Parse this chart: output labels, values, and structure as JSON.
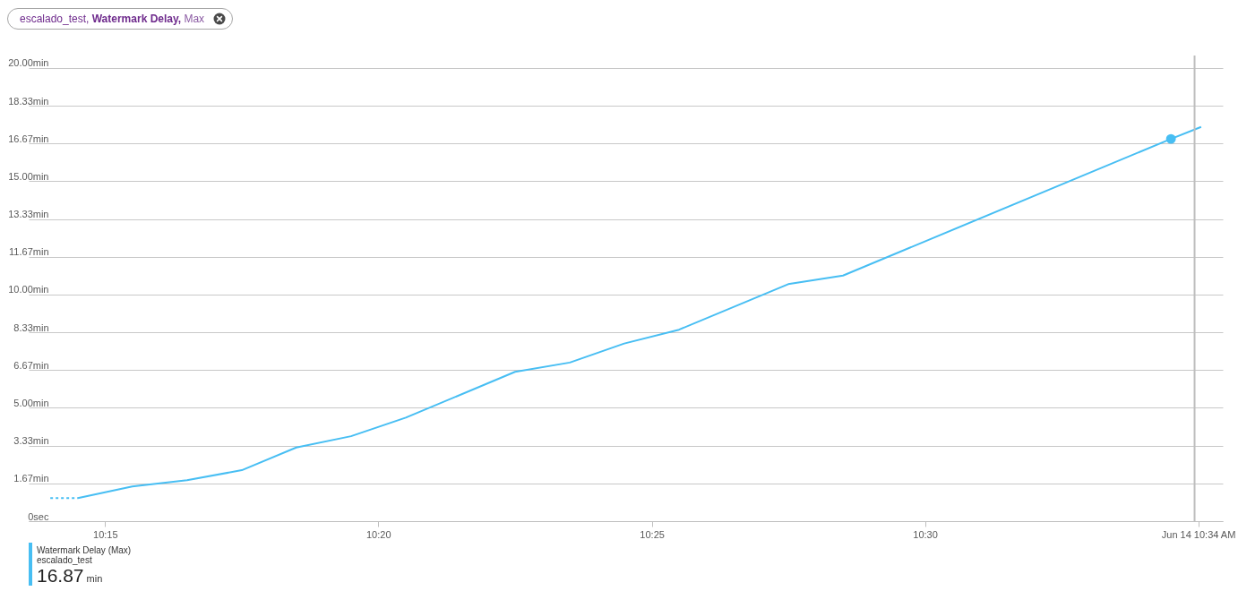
{
  "chart_data": {
    "type": "line",
    "title": "escalado_test, Watermark Delay, Max",
    "series": [
      {
        "color": "#47bef3",
        "line_style": "dotted",
        "x": [
          10.2333,
          10.2417
        ],
        "values": [
          1.02,
          1.02
        ]
      },
      {
        "name": "Watermark Delay (Max)",
        "color": "#47bef3",
        "x": [
          10.2417,
          10.2583,
          10.275,
          10.2917,
          10.3083,
          10.325,
          10.3417,
          10.375,
          10.3917,
          10.4083,
          10.425,
          10.4583,
          10.475,
          10.575,
          10.5842
        ],
        "values": [
          1.02,
          1.53,
          1.81,
          2.25,
          3.25,
          3.75,
          4.57,
          6.59,
          7.0,
          7.84,
          8.45,
          10.46,
          10.84,
          16.87,
          17.4
        ]
      },
      {
        "type": "scatter",
        "marker": "circle",
        "color": "#47bef3",
        "x": [
          10.575
        ],
        "values": [
          16.87
        ]
      }
    ],
    "xlim": [
      10.2267,
      10.5908
    ],
    "xticks": [
      {
        "value": 10.25,
        "label": "10:15"
      },
      {
        "value": 10.3333,
        "label": "10:20"
      },
      {
        "value": 10.4167,
        "label": "10:25"
      },
      {
        "value": 10.5,
        "label": "10:30"
      },
      {
        "value": 10.5833,
        "label": "Jun 14 10:34 AM"
      }
    ],
    "ylim": [
      0,
      20.55
    ],
    "yticks": [
      {
        "value": 0,
        "label": "0sec"
      },
      {
        "value": 1.667,
        "label": "1.67min"
      },
      {
        "value": 3.333,
        "label": "3.33min"
      },
      {
        "value": 5,
        "label": "5.00min"
      },
      {
        "value": 6.667,
        "label": "6.67min"
      },
      {
        "value": 8.333,
        "label": "8.33min"
      },
      {
        "value": 10,
        "label": "10.00min"
      },
      {
        "value": 11.667,
        "label": "11.67min"
      },
      {
        "value": 13.333,
        "label": "13.33min"
      },
      {
        "value": 15,
        "label": "15.00min"
      },
      {
        "value": 16.667,
        "label": "16.67min"
      },
      {
        "value": 18.333,
        "label": "18.33min"
      },
      {
        "value": 20,
        "label": "20.00min"
      }
    ],
    "grid": "y",
    "legend": "bottom left",
    "ref_lines": [
      {
        "axis": "x",
        "value": 10.5822,
        "color": "#bdbdbd"
      }
    ],
    "annotations": [
      "escalado_test",
      "16.87",
      "min"
    ]
  }
}
